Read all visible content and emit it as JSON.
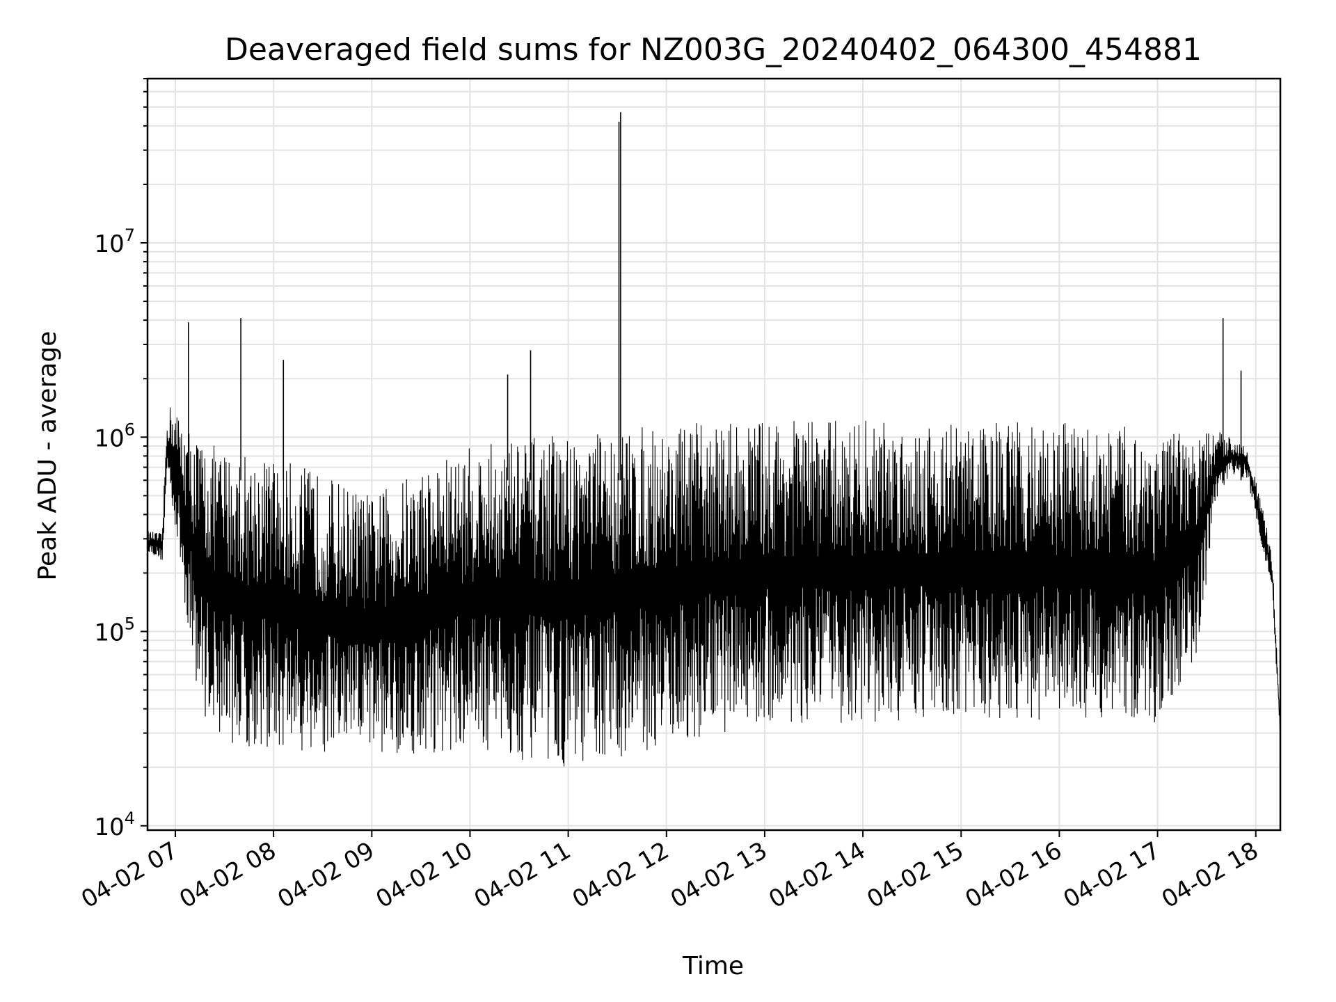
{
  "chart_data": {
    "type": "line",
    "title": "Deaveraged field sums for NZ003G_20240402_064300_454881",
    "xlabel": "Time",
    "ylabel": "Peak ADU - average",
    "yscale": "log",
    "ylim": [
      9500,
      70000000
    ],
    "xlim": [
      "2024-04-02 06:43",
      "2024-04-02 18:15"
    ],
    "grid": true,
    "line_color": "#000000",
    "grid_color": "#e3e3e3",
    "x_ticks": [
      "04-02 07",
      "04-02 08",
      "04-02 09",
      "04-02 10",
      "04-02 11",
      "04-02 12",
      "04-02 13",
      "04-02 14",
      "04-02 15",
      "04-02 16",
      "04-02 17",
      "04-02 18"
    ],
    "x_tick_times": [
      "2024-04-02 07:00",
      "2024-04-02 08:00",
      "2024-04-02 09:00",
      "2024-04-02 10:00",
      "2024-04-02 11:00",
      "2024-04-02 12:00",
      "2024-04-02 13:00",
      "2024-04-02 14:00",
      "2024-04-02 15:00",
      "2024-04-02 16:00",
      "2024-04-02 17:00",
      "2024-04-02 18:00"
    ],
    "y_ticks": [
      {
        "value": 10000,
        "base": "10",
        "exp": "4"
      },
      {
        "value": 100000,
        "base": "10",
        "exp": "5"
      },
      {
        "value": 1000000,
        "base": "10",
        "exp": "6"
      },
      {
        "value": 10000000,
        "base": "10",
        "exp": "7"
      }
    ],
    "series": [
      {
        "x": [
          "2024-04-02 06:43",
          "2024-04-02 06:52",
          "2024-04-02 06:55",
          "2024-04-02 06:58",
          "2024-04-02 07:05",
          "2024-04-02 07:15",
          "2024-04-02 07:25",
          "2024-04-02 07:40",
          "2024-04-02 08:00",
          "2024-04-02 08:20",
          "2024-04-02 08:40",
          "2024-04-02 09:00",
          "2024-04-02 09:30",
          "2024-04-02 10:00",
          "2024-04-02 10:30",
          "2024-04-02 11:00",
          "2024-04-02 11:30",
          "2024-04-02 12:00",
          "2024-04-02 12:30",
          "2024-04-02 13:00",
          "2024-04-02 13:30",
          "2024-04-02 14:00",
          "2024-04-02 14:30",
          "2024-04-02 15:00",
          "2024-04-02 15:30",
          "2024-04-02 16:00",
          "2024-04-02 16:30",
          "2024-04-02 17:00",
          "2024-04-02 17:25",
          "2024-04-02 17:35",
          "2024-04-02 17:45",
          "2024-04-02 17:55",
          "2024-04-02 18:05",
          "2024-04-02 18:10",
          "2024-04-02 18:15"
        ],
        "upper": [
          330000,
          320000,
          1400000,
          1500000,
          1200000,
          1000000,
          900000,
          850000,
          800000,
          700000,
          600000,
          500000,
          700000,
          900000,
          1000000,
          1050000,
          1100000,
          1150000,
          1200000,
          1250000,
          1250000,
          1250000,
          1250000,
          1200000,
          1200000,
          1200000,
          1150000,
          1100000,
          1000000,
          1100000,
          1000000,
          900000,
          400000,
          250000,
          35000
        ],
        "lower": [
          260000,
          230000,
          600000,
          450000,
          150000,
          40000,
          30000,
          25000,
          24000,
          23000,
          22000,
          24000,
          23000,
          25000,
          22000,
          20000,
          22000,
          26000,
          30000,
          32000,
          33000,
          33000,
          34000,
          35000,
          35000,
          35000,
          34000,
          33000,
          80000,
          400000,
          650000,
          600000,
          250000,
          150000,
          28000
        ]
      }
    ],
    "spikes": [
      {
        "x": "2024-04-02 07:08",
        "y": 3900000
      },
      {
        "x": "2024-04-02 07:40",
        "y": 4100000
      },
      {
        "x": "2024-04-02 08:06",
        "y": 2500000
      },
      {
        "x": "2024-04-02 10:23",
        "y": 2100000
      },
      {
        "x": "2024-04-02 10:37",
        "y": 2800000
      },
      {
        "x": "2024-04-02 11:31",
        "y": 42000000
      },
      {
        "x": "2024-04-02 11:32",
        "y": 47000000
      },
      {
        "x": "2024-04-02 17:40",
        "y": 4100000
      },
      {
        "x": "2024-04-02 17:51",
        "y": 2200000
      }
    ]
  }
}
